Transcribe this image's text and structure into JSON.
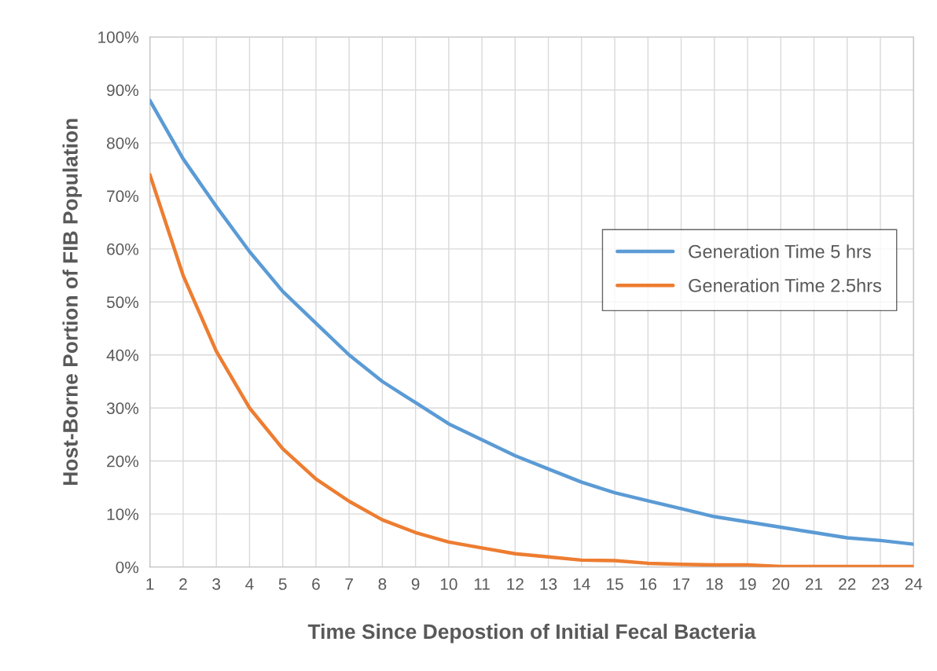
{
  "chart_data": {
    "type": "line",
    "xlabel": "Time Since Depostion of Initial Fecal Bacteria",
    "ylabel": "Host-Borne Portion of FIB Population",
    "categories": [
      "1",
      "2",
      "3",
      "4",
      "5",
      "6",
      "7",
      "8",
      "9",
      "10",
      "11",
      "12",
      "13",
      "14",
      "15",
      "16",
      "17",
      "18",
      "19",
      "20",
      "21",
      "22",
      "23",
      "24"
    ],
    "series": [
      {
        "name": "Generation Time 5 hrs",
        "color": "#5b9bd5",
        "values": [
          88,
          77,
          68,
          59.5,
          52,
          46,
          40,
          35,
          31,
          27,
          24,
          21,
          18.5,
          16,
          14,
          12.5,
          11,
          9.5,
          8.5,
          7.5,
          6.5,
          5.5,
          5,
          4.3
        ]
      },
      {
        "name": "Generation Time 2.5hrs",
        "color": "#ed7d31",
        "values": [
          74,
          55,
          40.7,
          30,
          22.3,
          16.6,
          12.4,
          8.9,
          6.5,
          4.7,
          3.6,
          2.5,
          1.9,
          1.3,
          1.2,
          0.7,
          0.5,
          0.4,
          0.4,
          0.1,
          0.1,
          0.1,
          0.1,
          0.1
        ]
      }
    ],
    "ylim": [
      0,
      100
    ],
    "yticks": [
      {
        "value": 0,
        "label": "0%"
      },
      {
        "value": 10,
        "label": "10%"
      },
      {
        "value": 20,
        "label": "20%"
      },
      {
        "value": 30,
        "label": "30%"
      },
      {
        "value": 40,
        "label": "40%"
      },
      {
        "value": 50,
        "label": "50%"
      },
      {
        "value": 60,
        "label": "60%"
      },
      {
        "value": 70,
        "label": "70%"
      },
      {
        "value": 80,
        "label": "80%"
      },
      {
        "value": 90,
        "label": "90%"
      },
      {
        "value": 100,
        "label": "100%"
      }
    ],
    "grid": true,
    "legend": "right",
    "marker": "none",
    "line_style": "solid"
  }
}
